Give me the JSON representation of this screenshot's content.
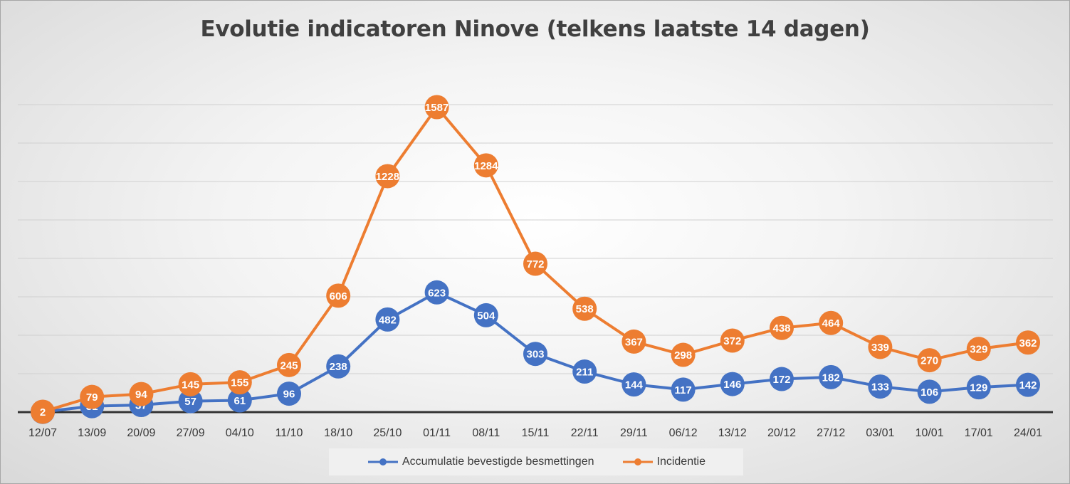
{
  "chart_data": {
    "type": "line",
    "title": "Evolutie indicatoren Ninove (telkens laatste 14 dagen)",
    "categories": [
      "12/07",
      "13/09",
      "20/09",
      "27/09",
      "04/10",
      "11/10",
      "18/10",
      "25/10",
      "01/11",
      "08/11",
      "15/11",
      "22/11",
      "29/11",
      "06/12",
      "13/12",
      "20/12",
      "27/12",
      "03/01",
      "10/01",
      "17/01",
      "24/01"
    ],
    "series": [
      {
        "name": "Accumulatie bevestigde besmettingen",
        "color": "#4472c4",
        "values": [
          1,
          31,
          37,
          57,
          61,
          96,
          238,
          482,
          623,
          504,
          303,
          211,
          144,
          117,
          146,
          172,
          182,
          133,
          106,
          129,
          142
        ],
        "labels": [
          "1",
          "31",
          "37",
          "57",
          "61",
          "96",
          "238",
          "482",
          "623",
          "504",
          "303",
          "211",
          "144",
          "117",
          "146",
          "172",
          "182",
          "133",
          "106",
          "129",
          "142"
        ]
      },
      {
        "name": "Incidentie",
        "color": "#ed7d31",
        "values": [
          2,
          79,
          94,
          145,
          155,
          245,
          606,
          1228,
          1587,
          1284,
          772,
          538,
          367,
          298,
          372,
          438,
          464,
          339,
          270,
          329,
          362
        ],
        "labels": [
          "2",
          "79",
          "94",
          "145",
          "155",
          "245",
          "606",
          "1228",
          "1587",
          "1284",
          "772",
          "538",
          "367",
          "298",
          "372",
          "438",
          "464",
          "339",
          "270",
          "329",
          "362"
        ]
      }
    ],
    "ylim": [
      0,
      1600
    ],
    "y_gridlines": [
      200,
      400,
      600,
      800,
      1000,
      1200,
      1400,
      1600
    ],
    "grid": true,
    "legend_position": "bottom"
  }
}
